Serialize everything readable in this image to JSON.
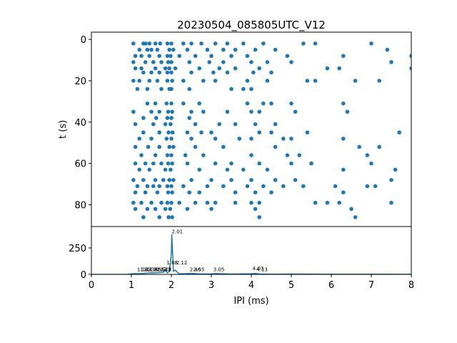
{
  "chart_data": [
    {
      "type": "scatter",
      "title": "20230504_085805UTC_V12",
      "ylabel": "t (s)",
      "color": "#1f77b4",
      "xlim": [
        0,
        8
      ],
      "ylim": [
        90.5,
        -3.5
      ],
      "yticks": [
        0,
        20,
        40,
        60,
        80
      ],
      "x": [
        1.05,
        1.3,
        1.35,
        1.45,
        1.6,
        1.72,
        1.9,
        2.0,
        2.3,
        2.5,
        2.75,
        3.1,
        3.4,
        3.8,
        4.3,
        5.3,
        5.6,
        7.0,
        1.2,
        1.4,
        1.5,
        1.65,
        1.95,
        2.05,
        2.4,
        2.9,
        3.3,
        3.6,
        4.1,
        4.6,
        7.4,
        1.1,
        1.25,
        1.45,
        1.7,
        1.9,
        1.98,
        2.2,
        2.6,
        3.0,
        3.5,
        3.9,
        4.9,
        6.3,
        8.0,
        1.05,
        1.35,
        1.55,
        1.75,
        1.92,
        2.0,
        2.45,
        2.95,
        3.3,
        4.0,
        4.4,
        5.0,
        7.5,
        1.1,
        1.25,
        1.6,
        1.85,
        1.95,
        2.1,
        2.7,
        3.2,
        3.6,
        4.2,
        5.9,
        6.2,
        8.0,
        1.3,
        1.5,
        1.7,
        1.9,
        2.0,
        2.5,
        3.05,
        3.4,
        4.05,
        4.5,
        1.05,
        1.2,
        1.45,
        1.65,
        1.9,
        2.02,
        2.3,
        2.8,
        3.1,
        3.9,
        4.4,
        5.4,
        5.6,
        6.6,
        7.2,
        1.15,
        1.4,
        1.75,
        1.95,
        2.0,
        2.45,
        3.5,
        3.8,
        4.0,
        1.4,
        1.6,
        1.88,
        2.0,
        2.3,
        2.7,
        3.9,
        4.3,
        4.5,
        5.0,
        6.3,
        1.05,
        1.5,
        1.7,
        1.92,
        2.02,
        2.5,
        2.8,
        3.4,
        4.0,
        4.2,
        5.1,
        6.4,
        1.3,
        1.62,
        1.9,
        2.0,
        2.45,
        1.1,
        1.55,
        1.85,
        1.98,
        2.6,
        3.2,
        3.6,
        4.1,
        4.6,
        1.3,
        1.7,
        1.93,
        2.03,
        2.4,
        2.75,
        3.0,
        4.2,
        4.5,
        5.4,
        7.7,
        1.2,
        1.5,
        1.88,
        2.0,
        2.5,
        3.1,
        3.7,
        4.0,
        4.8,
        5.0,
        6.3,
        1.1,
        1.42,
        1.7,
        1.95,
        2.05,
        2.6,
        3.3,
        4.6,
        6.7,
        7.2,
        1.25,
        1.6,
        1.9,
        2.0,
        2.35,
        2.8,
        4.0,
        4.9,
        5.2,
        6.9,
        1.1,
        1.35,
        1.55,
        1.75,
        1.92,
        2.02,
        2.4,
        3.1,
        3.5,
        4.2,
        5.0,
        5.5,
        7.0,
        1.2,
        1.45,
        1.85,
        1.98,
        2.7,
        3.4,
        3.8,
        4.4,
        6.3,
        7.6,
        1.05,
        1.3,
        1.6,
        1.8,
        1.95,
        2.05,
        2.5,
        3.0,
        3.5,
        4.0,
        4.6,
        5.1,
        7.5,
        1.15,
        1.4,
        1.55,
        1.7,
        1.9,
        2.0,
        2.3,
        2.9,
        3.3,
        3.9,
        4.3,
        4.8,
        5.3,
        6.1,
        6.9,
        7.1,
        1.1,
        1.35,
        1.65,
        1.92,
        2.02,
        2.45,
        2.7,
        3.6,
        4.1,
        4.5,
        6.3,
        1.05,
        1.25,
        1.5,
        1.75,
        1.9,
        2.0,
        2.2,
        2.6,
        2.9,
        3.1,
        3.6,
        4.0,
        4.2,
        5.6,
        5.9,
        6.2,
        7.5,
        1.1,
        1.4,
        1.6,
        1.85,
        1.97,
        2.4,
        3.0,
        4.1,
        6.5,
        1.3,
        1.7,
        1.93,
        2.02,
        4.2,
        6.6
      ],
      "y": [
        2,
        2,
        2,
        2,
        2,
        2,
        2,
        2,
        2,
        2,
        2,
        2,
        2,
        2,
        2,
        2,
        2,
        2,
        5,
        5,
        5,
        5,
        5,
        5,
        5,
        5,
        5,
        5,
        5,
        5,
        5,
        8,
        8,
        8,
        8,
        8,
        8,
        8,
        8,
        8,
        8,
        8,
        8,
        8,
        8,
        11,
        11,
        11,
        11,
        11,
        11,
        11,
        11,
        11,
        11,
        11,
        11,
        11,
        14,
        14,
        14,
        14,
        14,
        14,
        14,
        14,
        14,
        14,
        14,
        14,
        14,
        16,
        16,
        16,
        16,
        16,
        16,
        16,
        16,
        16,
        16,
        20,
        20,
        20,
        20,
        20,
        20,
        20,
        20,
        20,
        20,
        20,
        20,
        20,
        20,
        20,
        24,
        24,
        24,
        24,
        24,
        24,
        24,
        24,
        24,
        31,
        31,
        31,
        31,
        31,
        31,
        31,
        31,
        31,
        31,
        31,
        35,
        35,
        35,
        35,
        35,
        35,
        35,
        35,
        35,
        35,
        35,
        35,
        38,
        38,
        38,
        38,
        38,
        41,
        41,
        41,
        41,
        41,
        41,
        41,
        41,
        41,
        45,
        45,
        45,
        45,
        45,
        45,
        45,
        45,
        45,
        45,
        45,
        48,
        48,
        48,
        48,
        48,
        48,
        48,
        48,
        48,
        48,
        48,
        52,
        52,
        52,
        52,
        52,
        52,
        52,
        52,
        52,
        52,
        56,
        56,
        56,
        56,
        56,
        56,
        56,
        56,
        56,
        56,
        60,
        60,
        60,
        60,
        60,
        60,
        60,
        60,
        60,
        60,
        60,
        60,
        60,
        63,
        63,
        63,
        63,
        63,
        63,
        63,
        63,
        63,
        63,
        68,
        68,
        68,
        68,
        68,
        68,
        68,
        68,
        68,
        68,
        68,
        68,
        68,
        71,
        71,
        71,
        71,
        71,
        71,
        71,
        71,
        71,
        71,
        71,
        71,
        71,
        71,
        71,
        71,
        74,
        74,
        74,
        74,
        74,
        74,
        74,
        74,
        74,
        74,
        74,
        79,
        79,
        79,
        79,
        79,
        79,
        79,
        79,
        79,
        79,
        79,
        79,
        79,
        79,
        79,
        79,
        79,
        82,
        82,
        82,
        82,
        82,
        82,
        82,
        82,
        82,
        86,
        86,
        86,
        86,
        86,
        86
      ]
    },
    {
      "type": "line",
      "xlabel": "IPI (ms)",
      "color": "#1f77b4",
      "xlim": [
        0,
        8
      ],
      "xticks": [
        0,
        1,
        2,
        3,
        4,
        5,
        6,
        7,
        8
      ],
      "ylim": [
        0,
        452
      ],
      "yticks": [
        0,
        250
      ],
      "x": [
        0,
        0.9,
        1.0,
        1.1,
        1.2,
        1.3,
        1.4,
        1.5,
        1.6,
        1.7,
        1.8,
        1.85,
        1.9,
        1.95,
        2.0,
        2.01,
        2.05,
        2.1,
        2.15,
        2.2,
        2.4,
        2.5,
        2.7,
        3.0,
        3.1,
        3.5,
        4.0,
        4.1,
        4.2,
        4.5,
        5.0,
        6.0,
        7.0,
        8.0
      ],
      "y": [
        0,
        0,
        5,
        8,
        6,
        10,
        12,
        15,
        14,
        18,
        20,
        45,
        15,
        30,
        200,
        380,
        30,
        40,
        20,
        5,
        8,
        10,
        4,
        5,
        8,
        3,
        6,
        8,
        4,
        2,
        3,
        2,
        2,
        1
      ],
      "annotations": [
        {
          "x": 1.14,
          "y": 22
        },
        {
          "x": 1.22,
          "y": 22
        },
        {
          "x": 1.3,
          "y": 22
        },
        {
          "x": 1.38,
          "y": 22
        },
        {
          "x": 1.46,
          "y": 22
        },
        {
          "x": 1.55,
          "y": 22
        },
        {
          "x": 1.63,
          "y": 22
        },
        {
          "x": 1.72,
          "y": 22
        },
        {
          "x": 1.8,
          "y": 28
        },
        {
          "x": 1.88,
          "y": 88
        },
        {
          "x": 2.01,
          "y": 380
        },
        {
          "x": 2.12,
          "y": 88
        },
        {
          "x": 2.46,
          "y": 22
        },
        {
          "x": 2.55,
          "y": 22
        },
        {
          "x": 3.05,
          "y": 22
        },
        {
          "x": 4.03,
          "y": 35
        },
        {
          "x": 4.13,
          "y": 22
        }
      ]
    }
  ]
}
